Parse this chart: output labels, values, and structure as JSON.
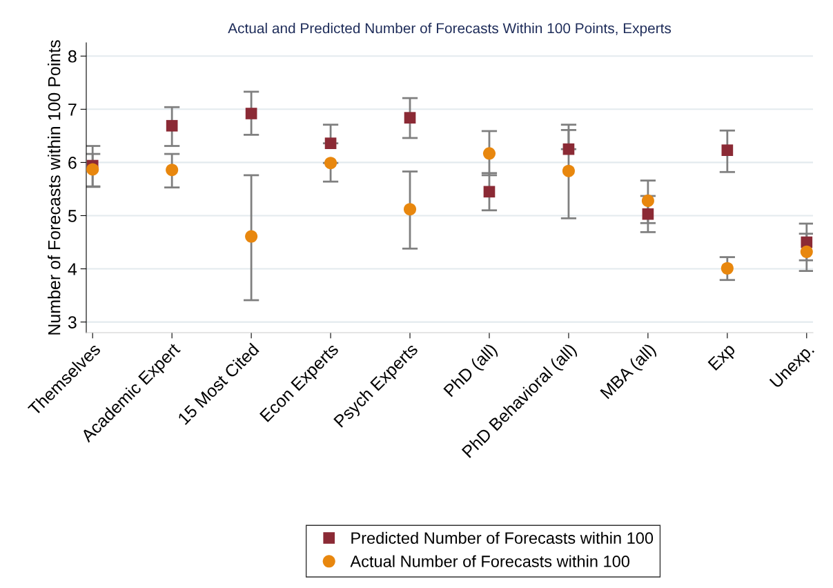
{
  "chart_data": {
    "type": "scatter",
    "title": "Actual and Predicted Number of Forecasts Within 100 Points, Experts",
    "ylabel": "Number of Forecasts within 100 Points",
    "categories": [
      "Themselves",
      "Academic Expert",
      "15 Most Cited",
      "Econ Experts",
      "Psych Experts",
      "PhD (all)",
      "PhD Behavioral (all)",
      "MBA (all)",
      "Exp",
      "Unexp."
    ],
    "series": [
      {
        "name": "Predicted Number of Forecasts within 100",
        "color": "#8b2a35",
        "marker": "square",
        "values": [
          5.94,
          6.69,
          6.92,
          6.36,
          6.84,
          5.45,
          6.25,
          5.03,
          6.23,
          4.5
        ],
        "errors": [
          [
            5.55,
            6.31
          ],
          [
            6.31,
            7.04
          ],
          [
            6.52,
            7.33
          ],
          [
            6.36,
            6.71
          ],
          [
            6.46,
            7.21
          ],
          [
            5.1,
            5.8
          ],
          [
            6.25,
            6.61
          ],
          [
            4.69,
            5.37
          ],
          [
            5.82,
            6.6
          ],
          [
            4.16,
            4.85
          ]
        ]
      },
      {
        "name": "Actual Number of Forecasts within 100",
        "color": "#e8870e",
        "marker": "circle",
        "values": [
          5.87,
          5.86,
          4.61,
          5.99,
          5.12,
          6.17,
          5.84,
          5.28,
          4.01,
          4.32
        ],
        "errors": [
          [
            5.54,
            6.16
          ],
          [
            5.53,
            6.16
          ],
          [
            3.41,
            5.76
          ],
          [
            5.64,
            5.99
          ],
          [
            4.38,
            5.83
          ],
          [
            5.76,
            6.59
          ],
          [
            4.95,
            6.71
          ],
          [
            4.86,
            5.66
          ],
          [
            3.79,
            4.22
          ],
          [
            3.96,
            4.66
          ]
        ]
      }
    ],
    "ylim": [
      2.8,
      8.25
    ],
    "yticks": [
      3,
      4,
      5,
      6,
      7,
      8
    ],
    "grid": "y",
    "legend": "bottom"
  }
}
